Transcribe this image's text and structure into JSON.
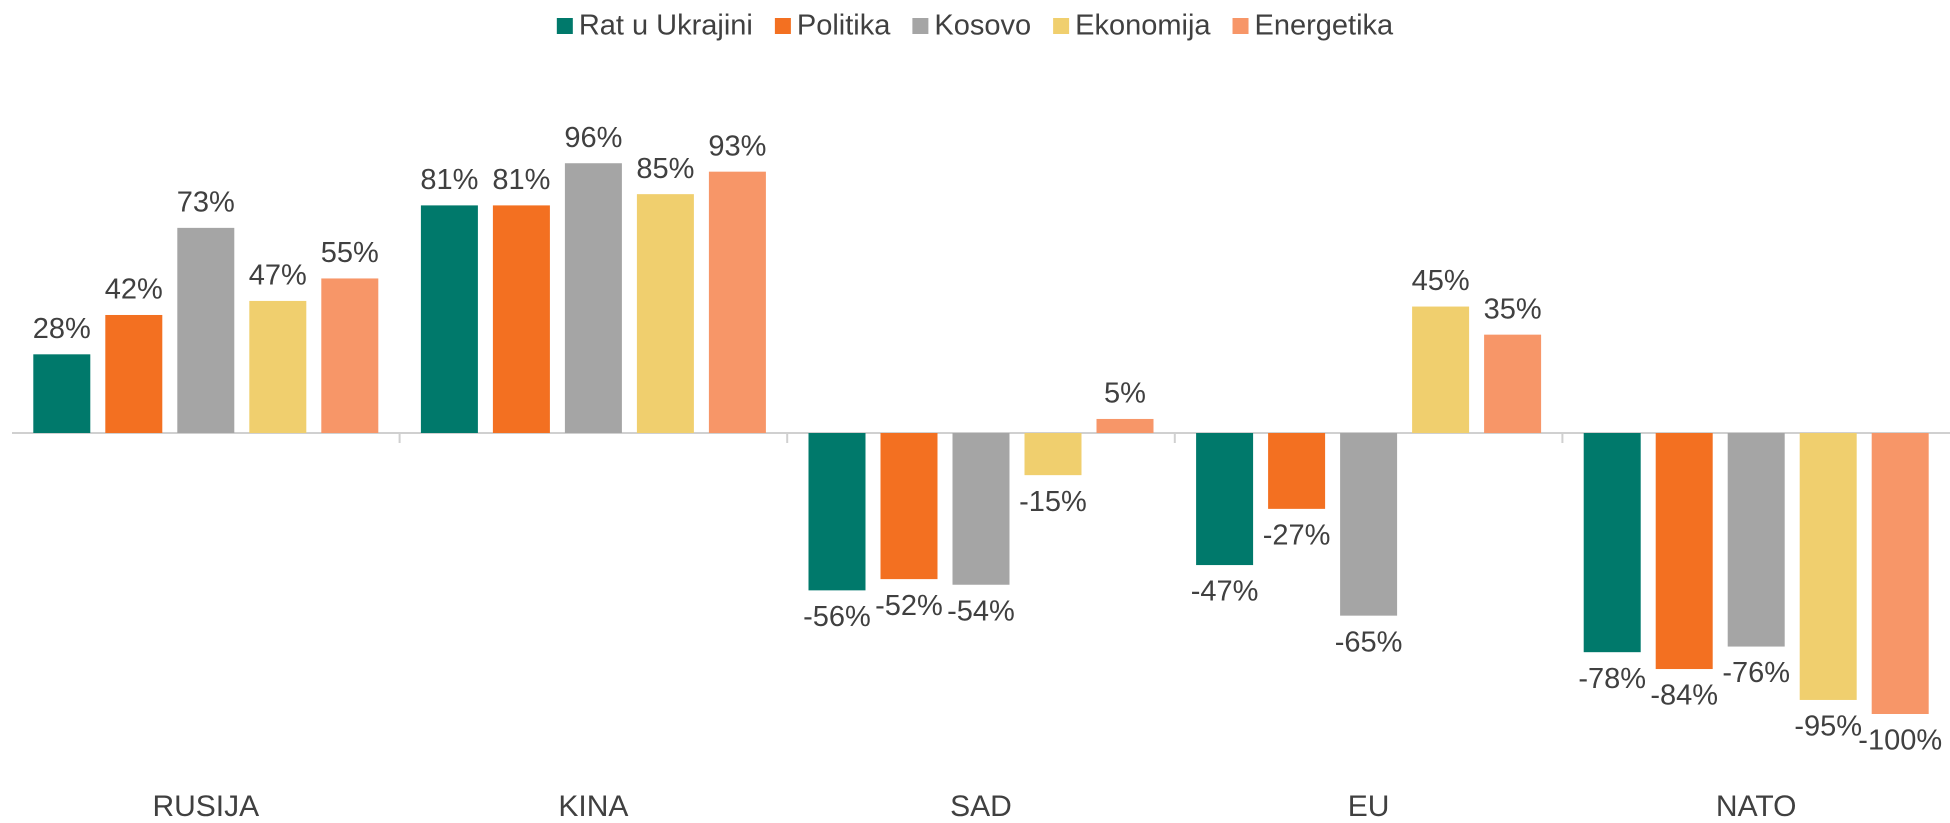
{
  "chart_data": {
    "type": "bar",
    "categories": [
      "RUSIJA",
      "KINA",
      "SAD",
      "EU",
      "NATO"
    ],
    "series": [
      {
        "name": "Rat u Ukrajini",
        "color": "#00796b",
        "values": [
          28,
          81,
          -56,
          -47,
          -78
        ],
        "value_labels": [
          "28%",
          "81%",
          "-56%",
          "-47%",
          "-78%"
        ]
      },
      {
        "name": "Politika",
        "color": "#f37021",
        "values": [
          42,
          81,
          -52,
          -27,
          -84
        ],
        "value_labels": [
          "42%",
          "81%",
          "-52%",
          "-27%",
          "-84%"
        ]
      },
      {
        "name": "Kosovo",
        "color": "#a5a5a5",
        "values": [
          73,
          96,
          -54,
          -65,
          -76
        ],
        "value_labels": [
          "73%",
          "96%",
          "-54%",
          "-65%",
          "-76%"
        ]
      },
      {
        "name": "Ekonomija",
        "color": "#f0cf6e",
        "values": [
          47,
          85,
          -15,
          45,
          -95
        ],
        "value_labels": [
          "47%",
          "85%",
          "-15%",
          "45%",
          "-95%"
        ]
      },
      {
        "name": "Energetika",
        "color": "#f79668",
        "values": [
          55,
          93,
          5,
          35,
          -100
        ],
        "value_labels": [
          "55%",
          "93%",
          "5%",
          "35%",
          "-100%"
        ]
      }
    ],
    "legend": "top"
  }
}
